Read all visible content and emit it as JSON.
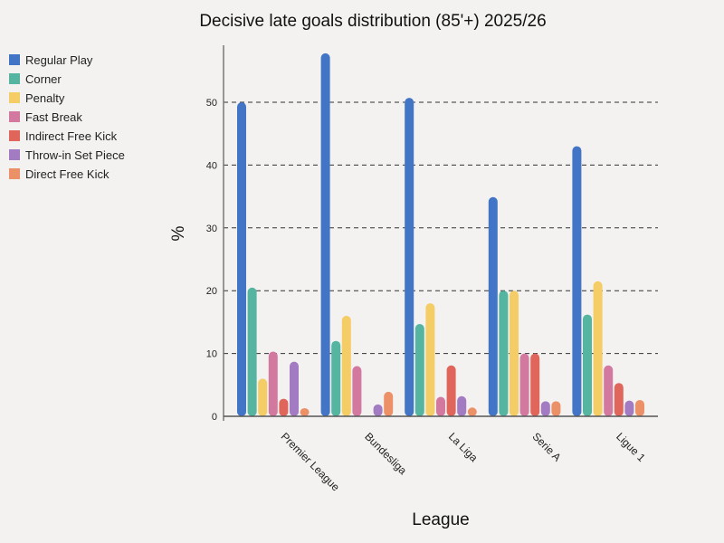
{
  "chart_data": {
    "type": "bar",
    "title": "Decisive late goals distribution (85'+) 2025/26",
    "xlabel": "League",
    "ylabel": "%",
    "ylim": [
      0,
      60
    ],
    "yticks": [
      0,
      10,
      20,
      30,
      40,
      50
    ],
    "grid": "horizontal dashed",
    "legend_position": "left",
    "categories": [
      "Premier League",
      "Bundesliga",
      "La Liga",
      "Serie A",
      "Ligue 1"
    ],
    "series": [
      {
        "name": "Regular Play",
        "color": "#4375c6",
        "values": [
          50,
          57.8,
          50.7,
          34.9,
          43
        ]
      },
      {
        "name": "Corner",
        "color": "#55b5a0",
        "values": [
          20.5,
          12,
          14.7,
          20,
          16.2
        ]
      },
      {
        "name": "Penalty",
        "color": "#f5cd66",
        "values": [
          6,
          16,
          18,
          20,
          21.5
        ]
      },
      {
        "name": "Fast Break",
        "color": "#d3799f",
        "values": [
          10.3,
          8,
          3.1,
          10,
          8.1
        ]
      },
      {
        "name": "Indirect Free Kick",
        "color": "#e0655a",
        "values": [
          2.8,
          0,
          8.1,
          10,
          5.3
        ]
      },
      {
        "name": "Throw-in Set Piece",
        "color": "#a37bc2",
        "values": [
          8.7,
          1.9,
          3.2,
          2.4,
          2.5
        ]
      },
      {
        "name": "Direct Free Kick",
        "color": "#ec9068",
        "values": [
          1.3,
          3.9,
          1.4,
          2.4,
          2.6
        ]
      }
    ]
  }
}
